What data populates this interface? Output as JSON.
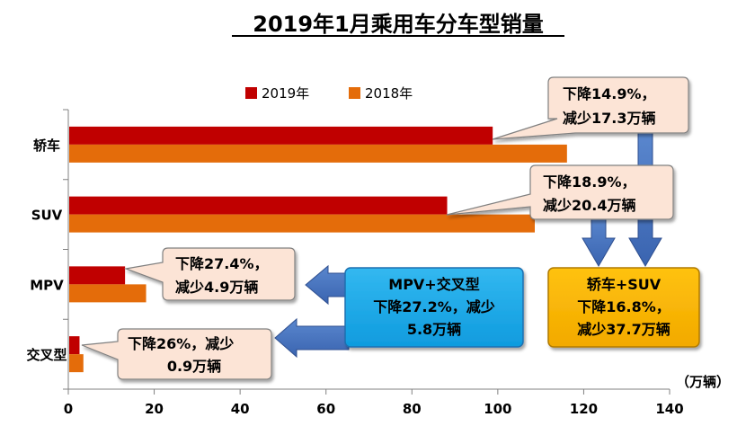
{
  "chart_data": {
    "type": "bar",
    "orientation": "horizontal",
    "title": "2019年1月乘用车分车型销量",
    "unit": "（万辆）",
    "categories": [
      "轿车",
      "SUV",
      "MPV",
      "交叉型"
    ],
    "series": [
      {
        "name": "2019年",
        "color": "#C00000",
        "values": [
          98.6,
          88.0,
          13.0,
          2.4
        ]
      },
      {
        "name": "2018年",
        "color": "#E46C0A",
        "values": [
          115.9,
          108.4,
          17.9,
          3.3
        ]
      }
    ],
    "xlim": [
      0,
      140
    ],
    "xticks": [
      0,
      20,
      40,
      60,
      80,
      100,
      120,
      140
    ],
    "legend_position": "top",
    "annotations": {
      "sedan": [
        "下降14.9%，",
        "减少17.3万辆"
      ],
      "suv": [
        "下降18.9%，",
        "减少20.4万辆"
      ],
      "mpv": [
        "下降27.4%，",
        "减少4.9万辆"
      ],
      "crossover": [
        "下降26%，减少",
        "0.9万辆"
      ],
      "mpv_cross_total": [
        "MPV+交叉型",
        "下降27.2%，减少",
        "5.8万辆"
      ],
      "sedan_suv_total": [
        "轿车+SUV",
        "下降16.8%，",
        "减少37.7万辆"
      ]
    }
  }
}
